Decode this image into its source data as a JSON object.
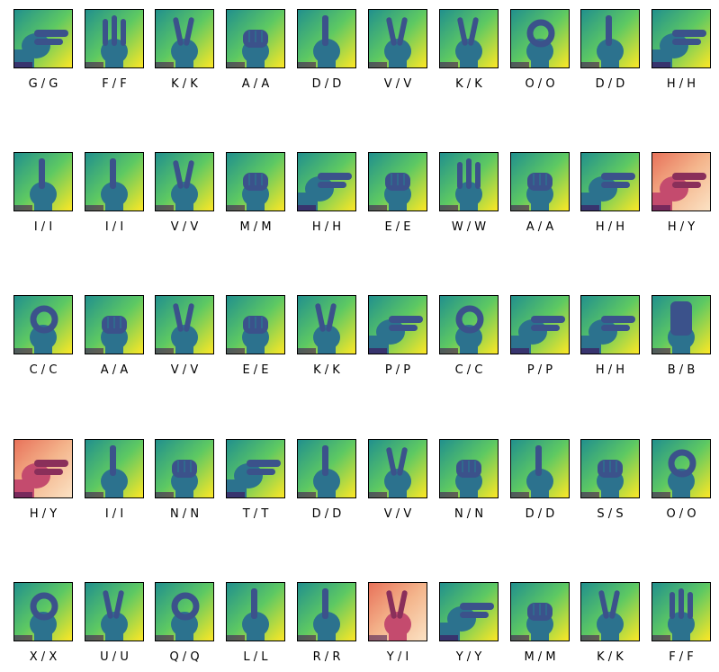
{
  "grid": {
    "rows": [
      [
        {
          "label": "G / G",
          "palette": "viridis",
          "gesture": "point-side"
        },
        {
          "label": "F / F",
          "palette": "viridis",
          "gesture": "three-fingers"
        },
        {
          "label": "K / K",
          "palette": "viridis",
          "gesture": "two-fingers"
        },
        {
          "label": "A / A",
          "palette": "viridis",
          "gesture": "fist"
        },
        {
          "label": "D / D",
          "palette": "viridis",
          "gesture": "one-finger"
        },
        {
          "label": "V / V",
          "palette": "viridis",
          "gesture": "two-fingers"
        },
        {
          "label": "K / K",
          "palette": "viridis",
          "gesture": "two-fingers"
        },
        {
          "label": "O / O",
          "palette": "viridis",
          "gesture": "round"
        },
        {
          "label": "D / D",
          "palette": "viridis",
          "gesture": "one-finger"
        },
        {
          "label": "H / H",
          "palette": "viridis",
          "gesture": "point-side"
        }
      ],
      [
        {
          "label": "I / I",
          "palette": "viridis",
          "gesture": "one-finger"
        },
        {
          "label": "I / I",
          "palette": "viridis",
          "gesture": "one-finger"
        },
        {
          "label": "V / V",
          "palette": "viridis",
          "gesture": "two-fingers"
        },
        {
          "label": "M / M",
          "palette": "viridis",
          "gesture": "fist"
        },
        {
          "label": "H / H",
          "palette": "viridis",
          "gesture": "point-side"
        },
        {
          "label": "E / E",
          "palette": "viridis",
          "gesture": "fist"
        },
        {
          "label": "W / W",
          "palette": "viridis",
          "gesture": "three-fingers"
        },
        {
          "label": "A / A",
          "palette": "viridis",
          "gesture": "fist"
        },
        {
          "label": "H / H",
          "palette": "viridis",
          "gesture": "point-side"
        },
        {
          "label": "H / Y",
          "palette": "warm",
          "gesture": "point-side"
        }
      ],
      [
        {
          "label": "C / C",
          "palette": "viridis",
          "gesture": "round"
        },
        {
          "label": "A / A",
          "palette": "viridis",
          "gesture": "fist"
        },
        {
          "label": "V / V",
          "palette": "viridis",
          "gesture": "two-fingers"
        },
        {
          "label": "E / E",
          "palette": "viridis",
          "gesture": "fist"
        },
        {
          "label": "K / K",
          "palette": "viridis",
          "gesture": "two-fingers"
        },
        {
          "label": "P / P",
          "palette": "viridis",
          "gesture": "point-side"
        },
        {
          "label": "C / C",
          "palette": "viridis",
          "gesture": "round"
        },
        {
          "label": "P / P",
          "palette": "viridis",
          "gesture": "point-side"
        },
        {
          "label": "H / H",
          "palette": "viridis",
          "gesture": "point-side"
        },
        {
          "label": "B / B",
          "palette": "viridis",
          "gesture": "flat"
        }
      ],
      [
        {
          "label": "H / Y",
          "palette": "warm",
          "gesture": "point-side"
        },
        {
          "label": "I / I",
          "palette": "viridis",
          "gesture": "one-finger"
        },
        {
          "label": "N / N",
          "palette": "viridis",
          "gesture": "fist"
        },
        {
          "label": "T / T",
          "palette": "viridis",
          "gesture": "point-side"
        },
        {
          "label": "D / D",
          "palette": "viridis",
          "gesture": "one-finger"
        },
        {
          "label": "V / V",
          "palette": "viridis",
          "gesture": "two-fingers"
        },
        {
          "label": "N / N",
          "palette": "viridis",
          "gesture": "fist"
        },
        {
          "label": "D / D",
          "palette": "viridis",
          "gesture": "one-finger"
        },
        {
          "label": "S / S",
          "palette": "viridis",
          "gesture": "fist"
        },
        {
          "label": "O / O",
          "palette": "viridis",
          "gesture": "round"
        }
      ],
      [
        {
          "label": "X / X",
          "palette": "viridis",
          "gesture": "round"
        },
        {
          "label": "U / U",
          "palette": "viridis",
          "gesture": "two-fingers"
        },
        {
          "label": "Q / Q",
          "palette": "viridis",
          "gesture": "round"
        },
        {
          "label": "L / L",
          "palette": "viridis",
          "gesture": "one-finger"
        },
        {
          "label": "R / R",
          "palette": "viridis",
          "gesture": "one-finger"
        },
        {
          "label": "Y / I",
          "palette": "warm",
          "gesture": "two-fingers"
        },
        {
          "label": "Y / Y",
          "palette": "viridis",
          "gesture": "point-side"
        },
        {
          "label": "M / M",
          "palette": "viridis",
          "gesture": "fist"
        },
        {
          "label": "K / K",
          "palette": "viridis",
          "gesture": "two-fingers"
        },
        {
          "label": "F / F",
          "palette": "viridis",
          "gesture": "three-fingers"
        }
      ]
    ]
  },
  "colors": {
    "viridis_bg": [
      "#21908d",
      "#5ec962",
      "#fde725"
    ],
    "viridis_hand": [
      "#3b528b",
      "#2c728e",
      "#35b779"
    ],
    "viridis_dark": "#440154",
    "warm_bg": [
      "#e8725a",
      "#f4b58c",
      "#fbe2c4"
    ],
    "warm_hand": [
      "#8a2f5a",
      "#c44b6e"
    ],
    "warm_dark": "#3b0f4f"
  }
}
